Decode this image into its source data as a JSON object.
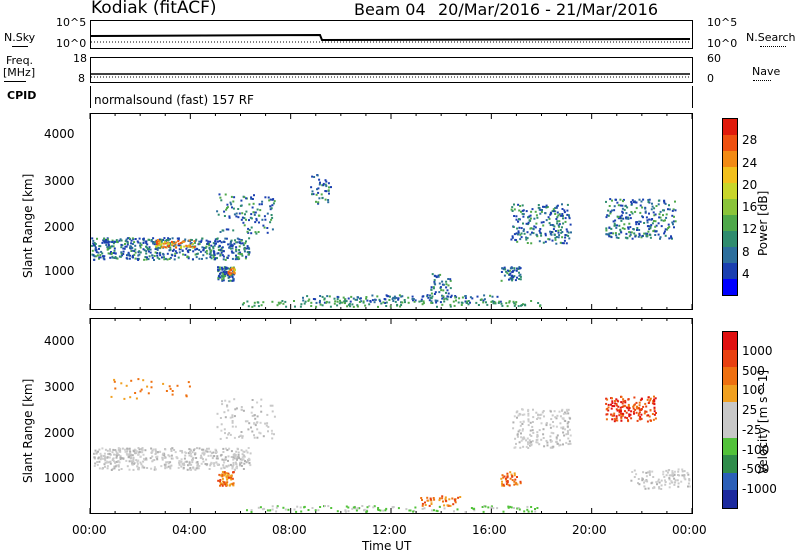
{
  "header": {
    "station": "Kodiak (fitACF)",
    "beam": "Beam 04",
    "date_range": "20/Mar/2016 - 21/Mar/2016"
  },
  "top_panels": {
    "nsky_label": "N.Sky",
    "nsearch_label": "N.Search",
    "nsky_ticks": [
      "10^5",
      "10^0"
    ],
    "nsearch_ticks": [
      "10^5",
      "10^0"
    ],
    "freq_label": "Freq.",
    "freq_unit": "[MHz]",
    "freq_ticks": [
      "18",
      "8"
    ],
    "nave_label": "Nave",
    "nave_ticks": [
      "60",
      "0"
    ],
    "cpid_label": "CPID",
    "cpid_value": "normalsound (fast) 157 RF"
  },
  "chart_data": [
    {
      "type": "heatmap",
      "name": "power",
      "ylabel": "Slant Range [km]",
      "xlabel": "Time UT",
      "yticks": [
        "4000",
        "3000",
        "2000",
        "1000"
      ],
      "ylim": [
        180,
        4500
      ],
      "xlim": [
        0,
        24
      ],
      "colorbar": {
        "label": "Power [dB]",
        "ticks": [
          "28",
          "24",
          "20",
          "16",
          "12",
          "8",
          "4"
        ],
        "colors": [
          "#0000ff",
          "#1a3fb0",
          "#2c6e9c",
          "#2f8c6e",
          "#4ea84a",
          "#8ac43a",
          "#c8d62a",
          "#f2c01c",
          "#f28a14",
          "#ee5010",
          "#e01a0c"
        ]
      }
    },
    {
      "type": "heatmap",
      "name": "velocity",
      "ylabel": "Slant Range [km]",
      "xlabel": "Time UT",
      "yticks": [
        "4000",
        "3000",
        "2000",
        "1000"
      ],
      "ylim": [
        180,
        4500
      ],
      "xlim": [
        0,
        24
      ],
      "colorbar": {
        "label": "Velocity [m s^-1]",
        "ticks": [
          "1000",
          "500",
          "100",
          "25",
          "-25",
          "-100",
          "-500",
          "-1000"
        ],
        "colors": [
          "#1c2a9e",
          "#2b5fb8",
          "#2f8c4a",
          "#52c23a",
          "#c8c8c8",
          "#c8c8c8",
          "#f0a020",
          "#ee7010",
          "#e84010",
          "#e01010"
        ]
      }
    }
  ],
  "xaxis": {
    "ticks": [
      "00:00",
      "04:00",
      "08:00",
      "12:00",
      "16:00",
      "20:00",
      "00:00"
    ],
    "label": "Time UT"
  }
}
